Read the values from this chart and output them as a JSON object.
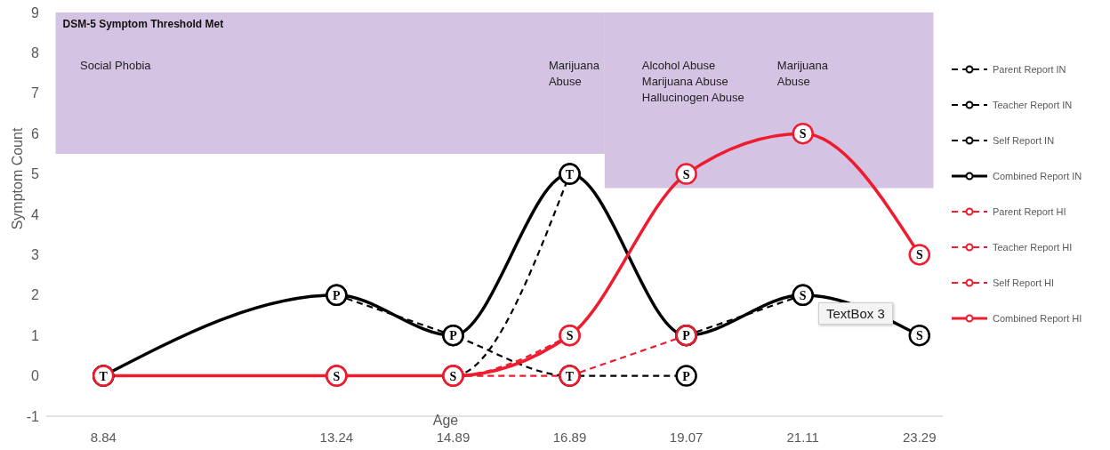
{
  "chart_data": {
    "type": "line",
    "xlabel": "Age",
    "ylabel": "Symptom Count",
    "categories": [
      "8.84",
      null,
      "13.24",
      "14.89",
      "16.89",
      "19.07",
      "21.11",
      "23.29"
    ],
    "ylim": [
      -1,
      9
    ],
    "yticks": [
      -1,
      0,
      1,
      2,
      3,
      4,
      5,
      6,
      7,
      8,
      9
    ],
    "grid": false,
    "legend": "right",
    "marker": "circle",
    "series": [
      {
        "name": "Parent Report IN",
        "color": "#000000",
        "line_style": "dashed",
        "values": [
          null,
          null,
          2,
          1,
          0,
          0,
          null,
          null
        ],
        "value_labels": [
          null,
          null,
          null,
          null,
          null,
          "P",
          null,
          null
        ]
      },
      {
        "name": "Teacher Report IN",
        "color": "#000000",
        "line_style": "dashed",
        "values": [
          0,
          null,
          null,
          0,
          5,
          null,
          null,
          null
        ]
      },
      {
        "name": "Self Report IN",
        "color": "#000000",
        "line_style": "dashed",
        "values": [
          null,
          null,
          null,
          null,
          null,
          1,
          2,
          null
        ]
      },
      {
        "name": "Combined Report IN",
        "color": "#000000",
        "line_style": "solid",
        "values": [
          0,
          null,
          2,
          1,
          5,
          1,
          2,
          1
        ],
        "value_labels": [
          null,
          null,
          "P",
          "P",
          "T",
          "P",
          "S",
          "S"
        ]
      },
      {
        "name": "Parent Report HI",
        "color": "#ee1c2e",
        "line_style": "dashed",
        "values": [
          null,
          null,
          null,
          null,
          0,
          1,
          null,
          null
        ],
        "value_labels": [
          null,
          null,
          null,
          null,
          "T",
          null,
          null,
          null
        ]
      },
      {
        "name": "Teacher Report HI",
        "color": "#ee1c2e",
        "line_style": "dashed",
        "values": [
          0,
          null,
          0,
          0,
          0,
          null,
          null,
          null
        ]
      },
      {
        "name": "Self Report HI",
        "color": "#ee1c2e",
        "line_style": "dashed",
        "values": [
          null,
          null,
          0,
          0,
          1,
          null,
          null,
          null
        ]
      },
      {
        "name": "Combined Report HI",
        "color": "#ee1c2e",
        "line_style": "solid",
        "values": [
          0,
          null,
          0,
          0,
          1,
          5,
          6,
          3
        ],
        "value_labels": [
          "T",
          null,
          "S",
          "S",
          "S",
          "S",
          "S",
          "S"
        ]
      }
    ],
    "bands": [
      {
        "axis": "y",
        "from": 5.5,
        "to": 9,
        "label": "DSM-5 Symptom Threshold Met",
        "color": "#d5c3e3"
      },
      {
        "axis": "y",
        "from": 4.65,
        "to": 9,
        "color": "#d5c3e3"
      }
    ],
    "annotations": [
      "Social Phobia",
      "Marijuana\nAbuse",
      "Alcohol Abuse\nMarijuana Abuse\nHallucinogen Abuse",
      "Marijuana\nAbuse",
      "TextBox 3"
    ]
  }
}
